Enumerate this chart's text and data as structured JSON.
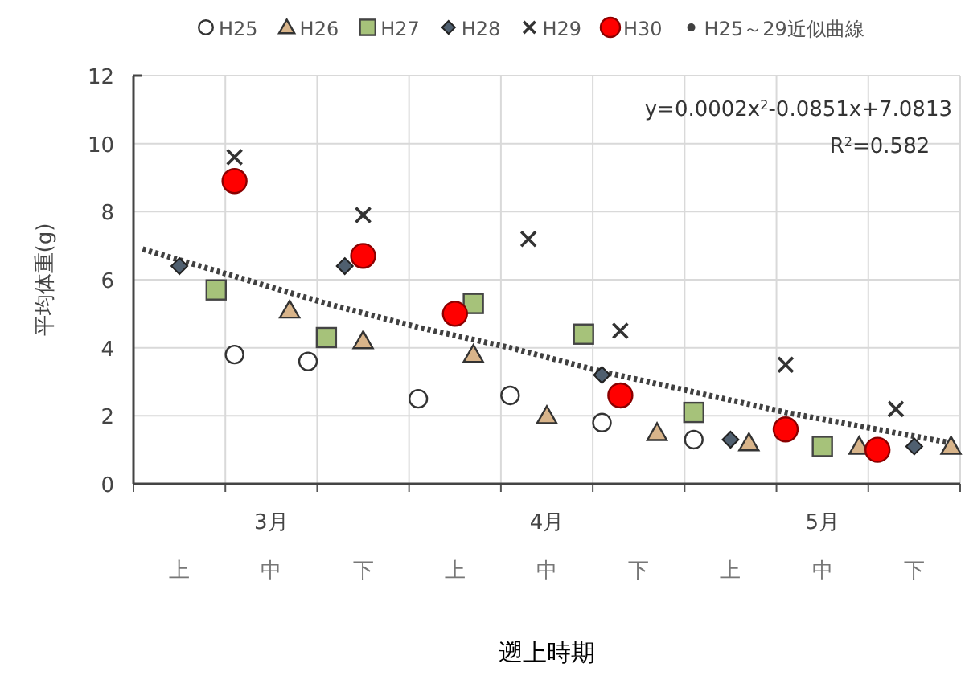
{
  "chart_data": {
    "type": "scatter",
    "xlabel": "遡上時期",
    "ylabel": "平均体重(g)",
    "categories": [
      null,
      null,
      "上",
      null,
      null,
      null,
      null,
      "中",
      null,
      null,
      null,
      null,
      "下",
      null,
      null,
      null,
      null,
      "上",
      null,
      null,
      null,
      null,
      "中",
      null,
      null,
      null,
      null,
      "下",
      null,
      null,
      null,
      null,
      "上",
      null,
      null,
      null,
      null,
      "中",
      null,
      null,
      null,
      null,
      "下",
      null,
      null
    ],
    "ylim": [
      0,
      12
    ],
    "yticks": [
      0,
      2,
      4,
      6,
      8,
      10,
      12
    ],
    "grid": true,
    "legend": "top",
    "annotations": [
      "y=0.0002x$^{2}$-0.0851x+7.0813",
      "R$^{2}$=0.582",
      "3月",
      "4月",
      "5月"
    ],
    "series": [
      {
        "name": "H25",
        "type": "scatter",
        "marker": "circle",
        "color": "#ffffff",
        "values": [
          null,
          null,
          null,
          null,
          null,
          3.8,
          null,
          null,
          null,
          3.6,
          null,
          null,
          null,
          null,
          null,
          2.5,
          null,
          null,
          null,
          null,
          2.6,
          null,
          null,
          null,
          null,
          1.8,
          null,
          null,
          null,
          null,
          1.3,
          null,
          null,
          null,
          null,
          null,
          null,
          null,
          null,
          null,
          null,
          null,
          null,
          null,
          null
        ]
      },
      {
        "name": "H26",
        "type": "scatter",
        "marker": "triangle",
        "color": "#d8b48a",
        "values": [
          null,
          null,
          null,
          null,
          null,
          null,
          null,
          null,
          5.1,
          null,
          null,
          null,
          4.2,
          null,
          null,
          null,
          null,
          null,
          3.8,
          null,
          null,
          null,
          2.0,
          null,
          null,
          null,
          null,
          null,
          1.5,
          null,
          null,
          null,
          null,
          1.2,
          null,
          null,
          null,
          null,
          null,
          1.1,
          null,
          null,
          null,
          null,
          1.1
        ]
      },
      {
        "name": "H27",
        "type": "scatter",
        "marker": "square",
        "color": "#a6c27a",
        "values": [
          null,
          null,
          null,
          null,
          5.7,
          null,
          null,
          null,
          null,
          null,
          4.3,
          null,
          null,
          null,
          null,
          null,
          null,
          null,
          5.3,
          null,
          null,
          null,
          null,
          null,
          4.4,
          null,
          null,
          null,
          null,
          null,
          2.1,
          null,
          null,
          null,
          null,
          null,
          null,
          1.1,
          null,
          null,
          null,
          null,
          null,
          null,
          null
        ]
      },
      {
        "name": "H28",
        "type": "scatter",
        "marker": "diamond",
        "color": "#4f5f6f",
        "values": [
          null,
          null,
          6.4,
          null,
          null,
          null,
          null,
          null,
          null,
          null,
          null,
          6.4,
          null,
          null,
          null,
          null,
          null,
          null,
          null,
          null,
          null,
          null,
          null,
          null,
          null,
          3.2,
          null,
          null,
          null,
          null,
          null,
          null,
          1.3,
          null,
          null,
          null,
          null,
          null,
          null,
          null,
          null,
          null,
          1.1,
          null,
          null
        ]
      },
      {
        "name": "H29",
        "type": "scatter",
        "marker": "cross",
        "color": "#333333",
        "values": [
          null,
          null,
          null,
          null,
          null,
          9.6,
          null,
          null,
          null,
          null,
          null,
          null,
          7.9,
          null,
          null,
          null,
          null,
          null,
          null,
          null,
          null,
          7.2,
          null,
          null,
          null,
          null,
          4.5,
          null,
          null,
          null,
          null,
          null,
          null,
          null,
          null,
          3.5,
          null,
          null,
          null,
          null,
          null,
          2.2,
          null,
          null,
          null
        ]
      },
      {
        "name": "H30",
        "type": "scatter",
        "marker": "circle",
        "color": "#ff0000",
        "values": [
          null,
          null,
          null,
          null,
          null,
          8.9,
          null,
          null,
          null,
          null,
          null,
          null,
          6.7,
          null,
          null,
          null,
          null,
          5.0,
          null,
          null,
          null,
          null,
          null,
          null,
          null,
          null,
          2.6,
          null,
          null,
          null,
          null,
          null,
          null,
          null,
          null,
          1.6,
          null,
          null,
          null,
          null,
          1.0,
          null,
          null,
          null,
          null
        ]
      },
      {
        "name": "H25～29近似曲線",
        "type": "line",
        "marker": "none",
        "line_style": "dotted",
        "color": "#404040",
        "values": [
          6.9,
          null,
          null,
          null,
          null,
          6.1,
          null,
          null,
          null,
          null,
          5.3,
          null,
          null,
          null,
          null,
          4.6,
          null,
          null,
          null,
          null,
          4.0,
          null,
          null,
          null,
          null,
          3.3,
          null,
          null,
          null,
          null,
          2.7,
          null,
          null,
          null,
          null,
          2.1,
          null,
          null,
          null,
          null,
          1.6,
          null,
          null,
          null,
          1.2
        ]
      }
    ]
  }
}
